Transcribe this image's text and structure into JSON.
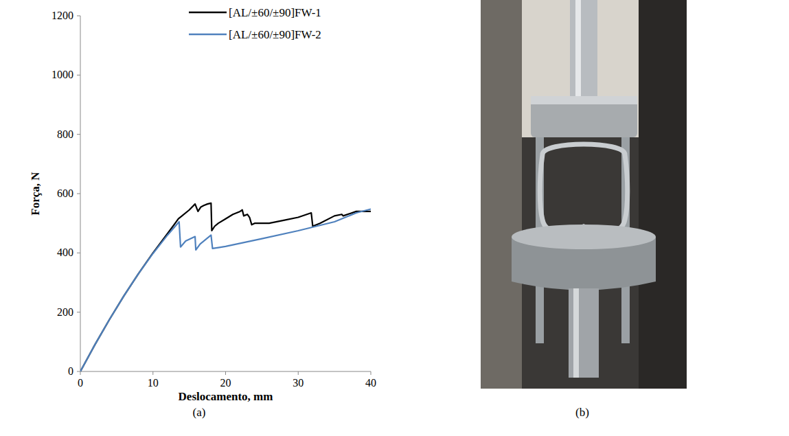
{
  "chart_data": {
    "type": "line",
    "x_label": "Deslocamento, mm",
    "y_label": "Força, N",
    "xlim": [
      0,
      40
    ],
    "xticks": [
      0,
      10,
      20,
      30,
      40
    ],
    "ylim": [
      0,
      1200
    ],
    "yticks": [
      0,
      200,
      400,
      600,
      800,
      1000,
      1200
    ],
    "grid": false,
    "legend": "top-right",
    "series": [
      {
        "name": "[AL/±60/±90]FW-1",
        "color": "#000000",
        "x": [
          0,
          2,
          4,
          6,
          8,
          10,
          12,
          13.5,
          14,
          15,
          15.8,
          16.2,
          16.6,
          17,
          17.5,
          18,
          18.1,
          18.5,
          19,
          20,
          21,
          22,
          22.3,
          22.5,
          23,
          23.3,
          23.6,
          24,
          26,
          28,
          30,
          31.8,
          32,
          33,
          35,
          36,
          36.2,
          38,
          40
        ],
        "values": [
          0,
          90,
          175,
          255,
          330,
          400,
          465,
          515,
          525,
          545,
          565,
          540,
          555,
          560,
          565,
          568,
          475,
          490,
          500,
          515,
          530,
          540,
          545,
          525,
          530,
          520,
          495,
          500,
          500,
          510,
          520,
          535,
          490,
          500,
          525,
          530,
          525,
          540,
          540
        ]
      },
      {
        "name": "[AL/±60/±90]FW-2",
        "color": "#4f81bd",
        "x": [
          0,
          2,
          4,
          6,
          8,
          10,
          12,
          13.6,
          13.8,
          14.5,
          15.8,
          15.9,
          16.5,
          18,
          18.2,
          19,
          20,
          25,
          30,
          35,
          38,
          40
        ],
        "values": [
          0,
          90,
          175,
          255,
          330,
          398,
          460,
          505,
          420,
          440,
          455,
          410,
          430,
          460,
          415,
          418,
          422,
          448,
          475,
          505,
          535,
          548
        ]
      }
    ]
  },
  "panel_labels": [
    "(a)",
    "(b)"
  ]
}
